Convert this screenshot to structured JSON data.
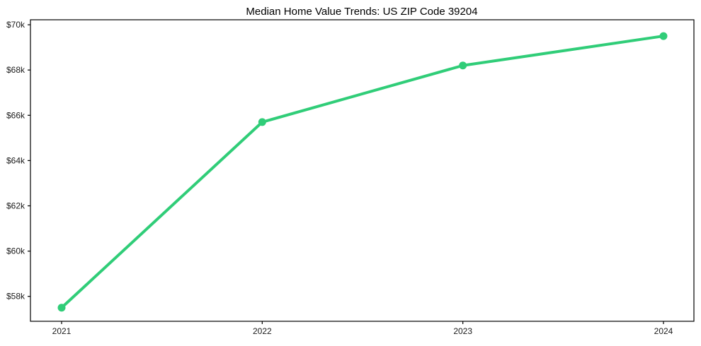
{
  "chart_data": {
    "type": "line",
    "title": "Median Home Value Trends: US ZIP Code 39204",
    "categories": [
      "2021",
      "2022",
      "2023",
      "2024"
    ],
    "series": [
      {
        "name": "Median Home Value",
        "values": [
          57500,
          65700,
          68200,
          69500
        ],
        "color": "#30cd78",
        "marker": "circle",
        "line_width": 4,
        "marker_radius": 5.5
      }
    ],
    "xlabel": "",
    "ylabel": "",
    "ylim": [
      56900,
      70220
    ],
    "yticks": [
      58000,
      60000,
      62000,
      64000,
      66000,
      68000,
      70000
    ],
    "ytick_labels": [
      "$58k",
      "$60k",
      "$62k",
      "$64k",
      "$66k",
      "$68k",
      "$70k"
    ],
    "xtick_labels": [
      "2021",
      "2022",
      "2023",
      "2024"
    ],
    "grid": false,
    "legend": "none",
    "background_color": "#ffffff",
    "axis_color": "#000000",
    "text_color": "#1a1a1a"
  }
}
